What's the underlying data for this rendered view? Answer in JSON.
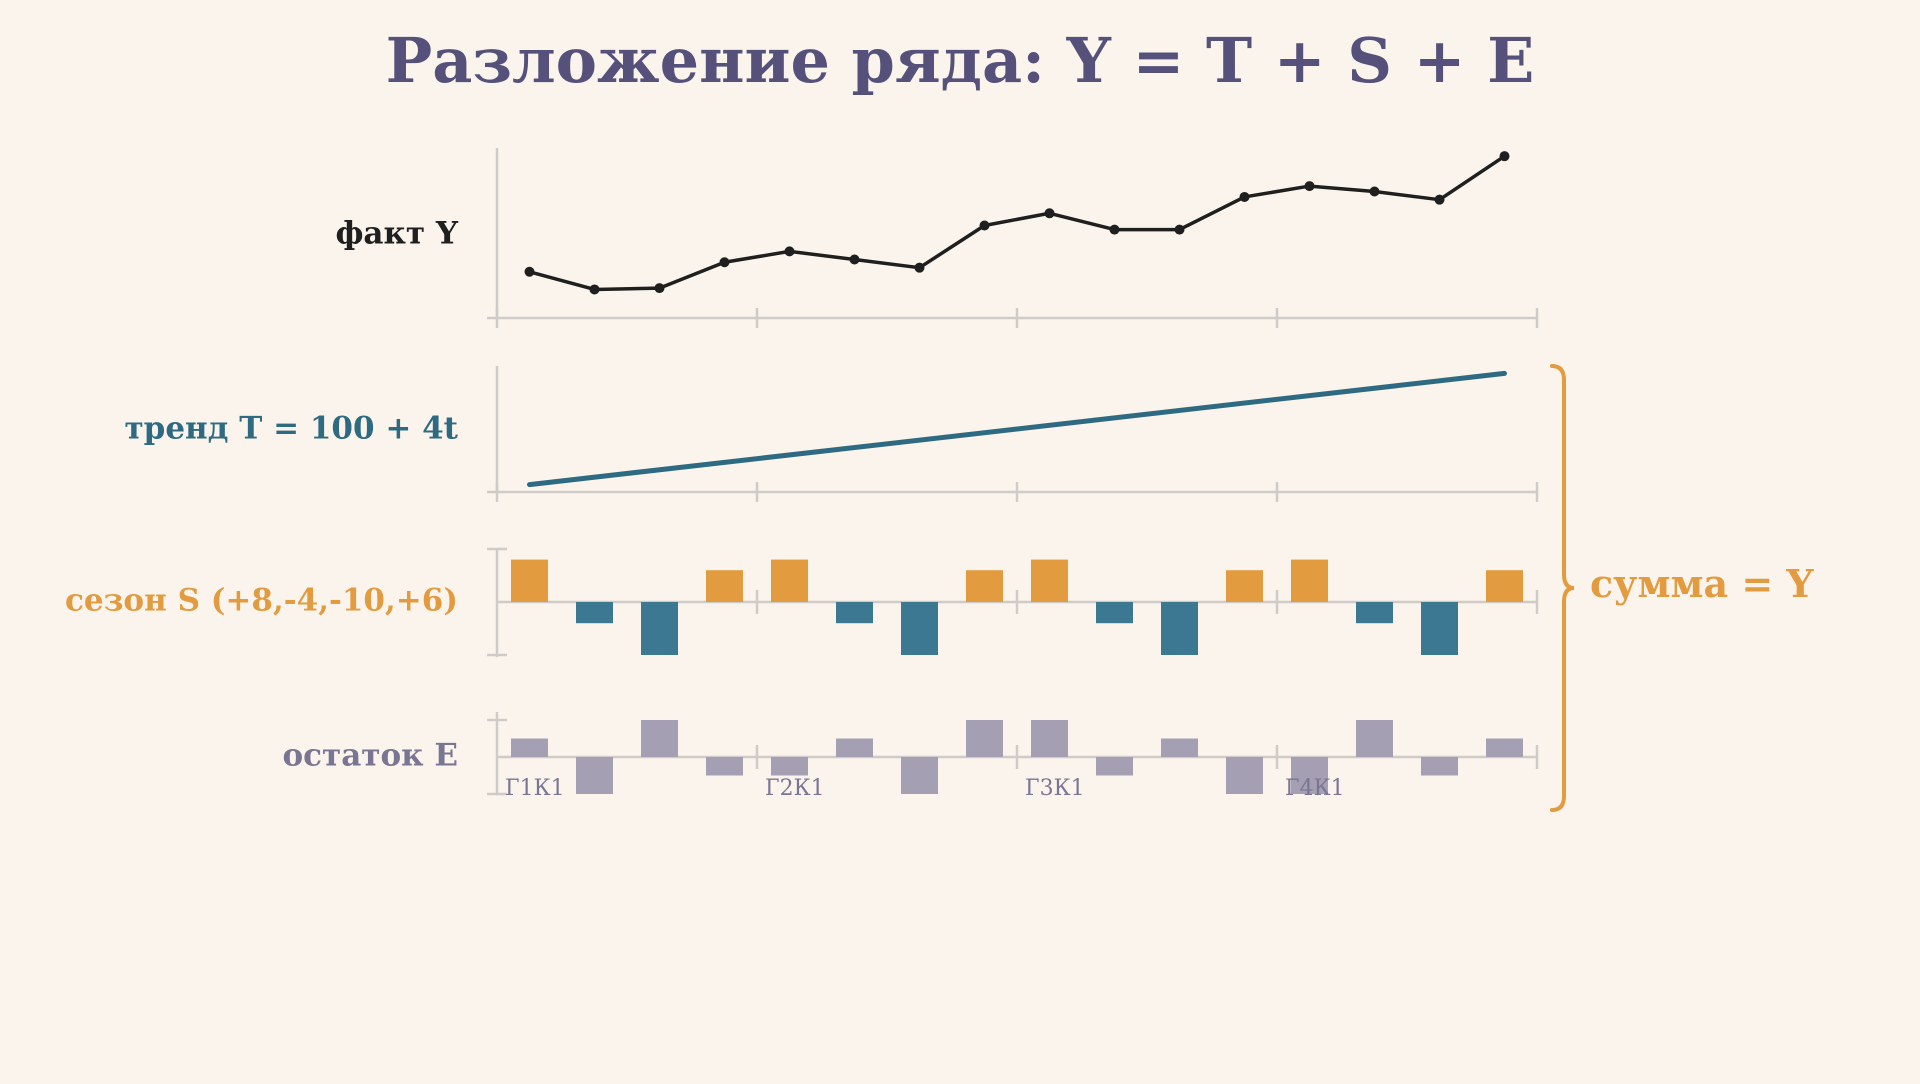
{
  "title": "Разложение ряда: Y = T + S + E",
  "colors": {
    "background": "#faf4ec",
    "title": "#55517a",
    "fact": "#1f1f1f",
    "trend": "#2e6b82",
    "season_pos": "#e39b40",
    "season_neg": "#3c7891",
    "residual": "#a49fb2",
    "residual_label": "#7a7592",
    "axis": "#cfcbc8",
    "sum": "#e39b40"
  },
  "sum_label": "сумма = Y",
  "chart_data": [
    {
      "type": "line",
      "panel": "fact",
      "label": "факт Y",
      "x": [
        1,
        2,
        3,
        4,
        5,
        6,
        7,
        8,
        9,
        10,
        11,
        12,
        13,
        14,
        15,
        16
      ],
      "values": [
        109,
        96,
        97,
        116,
        124,
        118,
        112,
        143,
        152,
        140,
        140,
        164,
        172,
        168,
        162,
        194
      ],
      "ylim": [
        75,
        200
      ],
      "grid": false
    },
    {
      "type": "line",
      "panel": "trend",
      "label": "тренд T = 100 + 4t",
      "x": [
        1,
        16
      ],
      "values": [
        104,
        164
      ],
      "ylim": [
        100,
        168
      ],
      "grid": false
    },
    {
      "type": "bar",
      "panel": "season",
      "label": "сезон S (+8,-4,-10,+6)",
      "x": [
        1,
        2,
        3,
        4,
        5,
        6,
        7,
        8,
        9,
        10,
        11,
        12,
        13,
        14,
        15,
        16
      ],
      "values": [
        8,
        -4,
        -10,
        6,
        8,
        -4,
        -10,
        6,
        8,
        -4,
        -10,
        6,
        8,
        -4,
        -10,
        6
      ],
      "ylim": [
        -10,
        10
      ],
      "grid": false
    },
    {
      "type": "bar",
      "panel": "residual",
      "label": "остаток E",
      "x": [
        1,
        2,
        3,
        4,
        5,
        6,
        7,
        8,
        9,
        10,
        11,
        12,
        13,
        14,
        15,
        16
      ],
      "categories": [
        "Г1К1",
        "",
        "",
        "",
        "Г2К1",
        "",
        "",
        "",
        "Г3К1",
        "",
        "",
        "",
        "Г4К1",
        "",
        "",
        ""
      ],
      "values": [
        1,
        -2,
        2,
        -1,
        -1,
        1,
        -2,
        2,
        2,
        -1,
        1,
        -2,
        -2,
        2,
        -1,
        1
      ],
      "ylim": [
        -2,
        2
      ],
      "grid": false
    }
  ]
}
